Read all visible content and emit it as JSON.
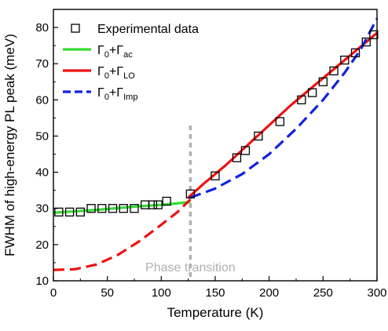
{
  "chart_data": {
    "type": "scatter",
    "xlabel": "Temperature (K)",
    "ylabel": "FWHM of high-energy PL peak (meV)",
    "xlim": [
      0,
      300
    ],
    "ylim": [
      10,
      85
    ],
    "xticks": [
      0,
      50,
      100,
      150,
      200,
      250,
      300
    ],
    "yticks": [
      10,
      20,
      30,
      40,
      50,
      60,
      70,
      80
    ],
    "grid": false,
    "legend_position": "top-left",
    "annotation": {
      "text": "Phase transition",
      "x": 127,
      "color": "#b0b0b0"
    },
    "experimental": {
      "name": "Experimental data",
      "x": [
        5,
        15,
        25,
        35,
        45,
        55,
        65,
        75,
        85,
        92,
        97,
        105,
        127,
        150,
        170,
        178,
        190,
        210,
        230,
        240,
        250,
        260,
        270,
        280,
        290,
        297
      ],
      "y": [
        29,
        29,
        29,
        30,
        30,
        30,
        30,
        30,
        31,
        31,
        31,
        32,
        34,
        39,
        44,
        46,
        50,
        54,
        60,
        62,
        65,
        68,
        71,
        73,
        76,
        78
      ]
    },
    "series": [
      {
        "name_base": "Γ",
        "name_sub1": "0",
        "name_plus": "+Γ",
        "name_sub2": "ac",
        "color": "#33dd33",
        "dash": "solid",
        "x": [
          0,
          20,
          40,
          60,
          80,
          100,
          115,
          127
        ],
        "y": [
          28.8,
          29.2,
          29.6,
          30.1,
          30.6,
          31.0,
          31.4,
          31.8
        ]
      },
      {
        "name_base": "Γ",
        "name_sub1": "0",
        "name_plus": "+Γ",
        "name_sub2": "LO",
        "color": "#ee1111",
        "dash": "solid",
        "x": [
          125,
          140,
          160,
          180,
          200,
          220,
          240,
          260,
          280,
          300
        ],
        "y": [
          33,
          37,
          42,
          47.5,
          53,
          58.5,
          63.5,
          68.5,
          73.5,
          78.5
        ]
      },
      {
        "name_base": "",
        "name_sub1": "",
        "name_plus": "",
        "name_sub2": "",
        "color": "#ee1111",
        "dash": "dashed",
        "x": [
          0,
          20,
          40,
          60,
          80,
          100,
          115,
          127
        ],
        "y": [
          13,
          13.2,
          14.5,
          17.2,
          21,
          25.5,
          29,
          32.5
        ]
      },
      {
        "name_base": "Γ",
        "name_sub1": "0",
        "name_plus": "+Γ",
        "name_sub2": "Imp",
        "color": "#1122dd",
        "dash": "dashed",
        "x": [
          127,
          150,
          175,
          200,
          225,
          250,
          270,
          285,
          300
        ],
        "y": [
          33,
          35.5,
          39.5,
          45,
          52,
          60,
          67.5,
          74,
          82.5
        ]
      }
    ]
  }
}
